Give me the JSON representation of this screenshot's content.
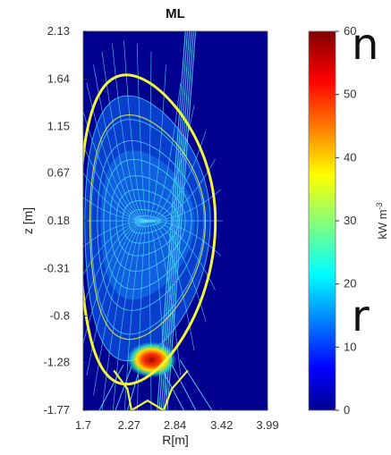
{
  "page": {
    "edge_text_top": "n",
    "edge_text_bottom": "r"
  },
  "chart_data": {
    "type": "heatmap",
    "title": "ML",
    "xlabel": "R[m]",
    "ylabel": "z [m]",
    "xlim": [
      1.7,
      3.99
    ],
    "ylim": [
      -1.77,
      2.13
    ],
    "x_ticks": [
      "1.7",
      "2.27",
      "2.84",
      "3.42",
      "3.99"
    ],
    "y_ticks": [
      "2.13",
      "1.64",
      "1.15",
      "0.67",
      "0.18",
      "-0.31",
      "-0.8",
      "-1.28",
      "-1.77"
    ],
    "colorbar": {
      "label": "kW m",
      "label_exponent": "-3",
      "range": [
        0,
        60
      ],
      "ticks": [
        "0",
        "10",
        "20",
        "30",
        "40",
        "50",
        "60"
      ],
      "colormap": "jet"
    },
    "hotspot": {
      "R": 2.55,
      "z": -1.25,
      "value": 60
    },
    "colors": {
      "background": "#00008f",
      "grid_lines": "#4fd8ff",
      "separatrix": "#f2f53a",
      "hotspot": "#a80000"
    }
  }
}
